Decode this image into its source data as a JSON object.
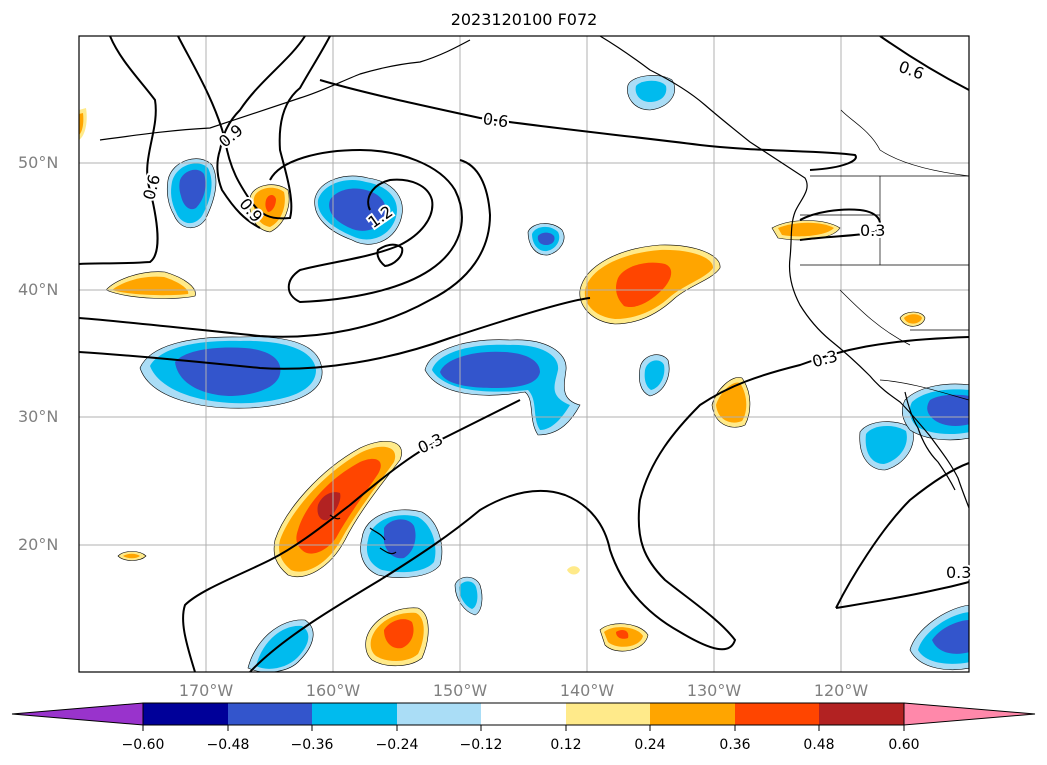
{
  "title": "2023120100 F072",
  "lat_labels": [
    "50°N",
    "40°N",
    "30°N",
    "20°N"
  ],
  "lon_labels": [
    "170°W",
    "160°W",
    "150°W",
    "140°W",
    "130°W",
    "120°W"
  ],
  "contour_labels": [
    "0.6",
    "0.9",
    "0.6",
    "0.9",
    "0.6",
    "1.2",
    "0.3",
    "0.3",
    "0.3",
    "0.3"
  ],
  "colorbar": {
    "ticks": [
      "−0.60",
      "−0.48",
      "−0.36",
      "−0.24",
      "−0.12",
      "0.12",
      "0.24",
      "0.36",
      "0.48",
      "0.60"
    ],
    "colors": [
      "#9933cc",
      "#000099",
      "#3355cc",
      "#00bbee",
      "#aaddf6",
      "#ffffff",
      "#ffea8a",
      "#ffa500",
      "#ff4500",
      "#b22222",
      "#ff88aa"
    ]
  },
  "colors": {
    "grid": "#b0b0b0",
    "label_gray": "#808080"
  }
}
